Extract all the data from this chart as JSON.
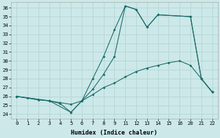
{
  "xlabel": "Humidex (Indice chaleur)",
  "bg_color": "#cce8e8",
  "grid_color": "#b5d5d5",
  "line_color": "#1a6b6b",
  "categories": [
    "0",
    "1",
    "2",
    "3",
    "4",
    "5",
    "6",
    "7",
    "8",
    "9",
    "11",
    "12",
    "13",
    "14",
    "15",
    "16",
    "20",
    "21",
    "22"
  ],
  "yticks": [
    24,
    25,
    26,
    27,
    28,
    29,
    30,
    31,
    32,
    33,
    34,
    35,
    36
  ],
  "ylim": [
    23.5,
    36.6
  ],
  "line1": {
    "cat_indices": [
      0,
      1,
      2,
      3,
      4,
      5,
      6,
      7,
      8,
      9,
      10,
      11,
      12,
      13,
      14,
      15,
      16,
      17,
      18
    ],
    "y": [
      26.0,
      25.8,
      25.6,
      25.5,
      25.3,
      25.1,
      25.5,
      26.2,
      27.0,
      27.5,
      28.2,
      28.8,
      29.2,
      29.5,
      29.8,
      30.0,
      29.5,
      28.0,
      26.5
    ]
  },
  "line2": {
    "cat_indices": [
      0,
      3,
      5,
      6,
      7,
      8,
      9,
      10,
      11,
      12,
      13,
      16,
      17,
      18
    ],
    "y": [
      26.0,
      25.5,
      24.2,
      25.5,
      28.0,
      30.5,
      33.5,
      36.2,
      35.8,
      33.8,
      35.2,
      35.0,
      28.0,
      26.5
    ]
  },
  "line3": {
    "cat_indices": [
      0,
      3,
      4,
      5,
      6,
      7,
      8,
      9,
      10,
      11,
      12,
      13,
      16,
      17,
      18
    ],
    "y": [
      26.0,
      25.5,
      25.2,
      24.2,
      25.5,
      26.8,
      28.5,
      30.5,
      36.2,
      35.8,
      33.8,
      35.2,
      35.0,
      28.0,
      26.5
    ]
  }
}
